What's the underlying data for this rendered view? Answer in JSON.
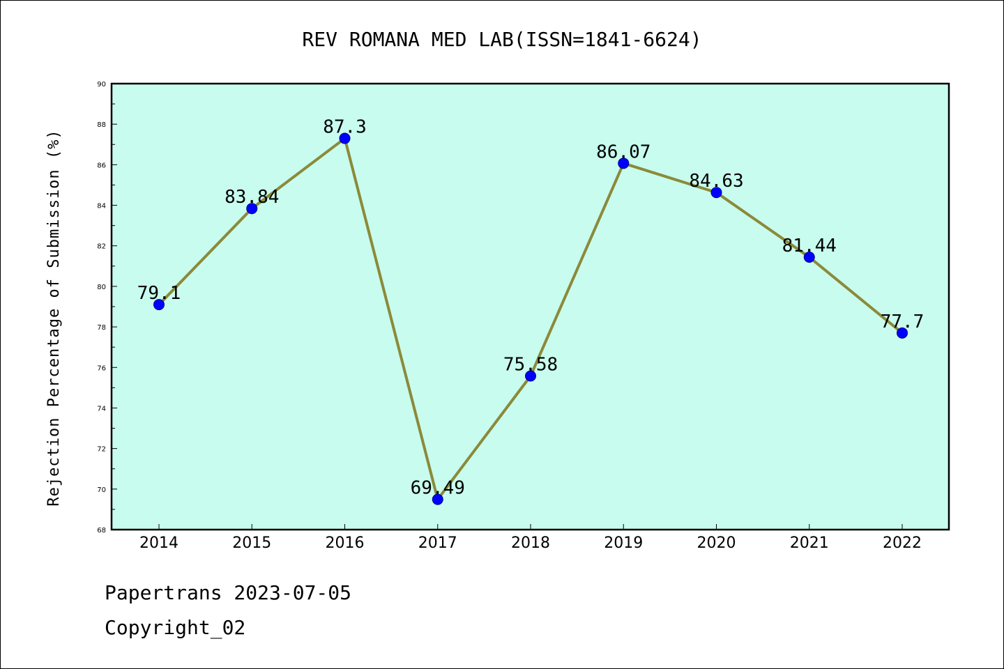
{
  "chart_data": {
    "type": "line",
    "title": "REV ROMANA MED LAB(ISSN=1841-6624)",
    "xlabel": "",
    "ylabel": "Rejection Percentage of Submission (%)",
    "categories": [
      "2014",
      "2015",
      "2016",
      "2017",
      "2018",
      "2019",
      "2020",
      "2021",
      "2022"
    ],
    "series": [
      {
        "values": [
          79.1,
          83.84,
          87.3,
          69.49,
          75.58,
          86.07,
          84.63,
          81.44,
          77.7
        ]
      }
    ],
    "data_labels": [
      "79.1",
      "83.84",
      "87.3",
      "69.49",
      "75.58",
      "86.07",
      "84.63",
      "81.44",
      "77.7"
    ],
    "ylim": [
      68,
      90
    ],
    "yticks": [
      "68",
      "70",
      "72",
      "74",
      "76",
      "78",
      "80",
      "82",
      "84",
      "86",
      "88",
      "90"
    ],
    "grid": false,
    "colors": {
      "plot_bg": "#c8fcee",
      "line": "#8b8a3a",
      "marker": "#0000ff"
    }
  },
  "footer": {
    "line1": "Papertrans 2023-07-05",
    "line2": "Copyright_02"
  }
}
